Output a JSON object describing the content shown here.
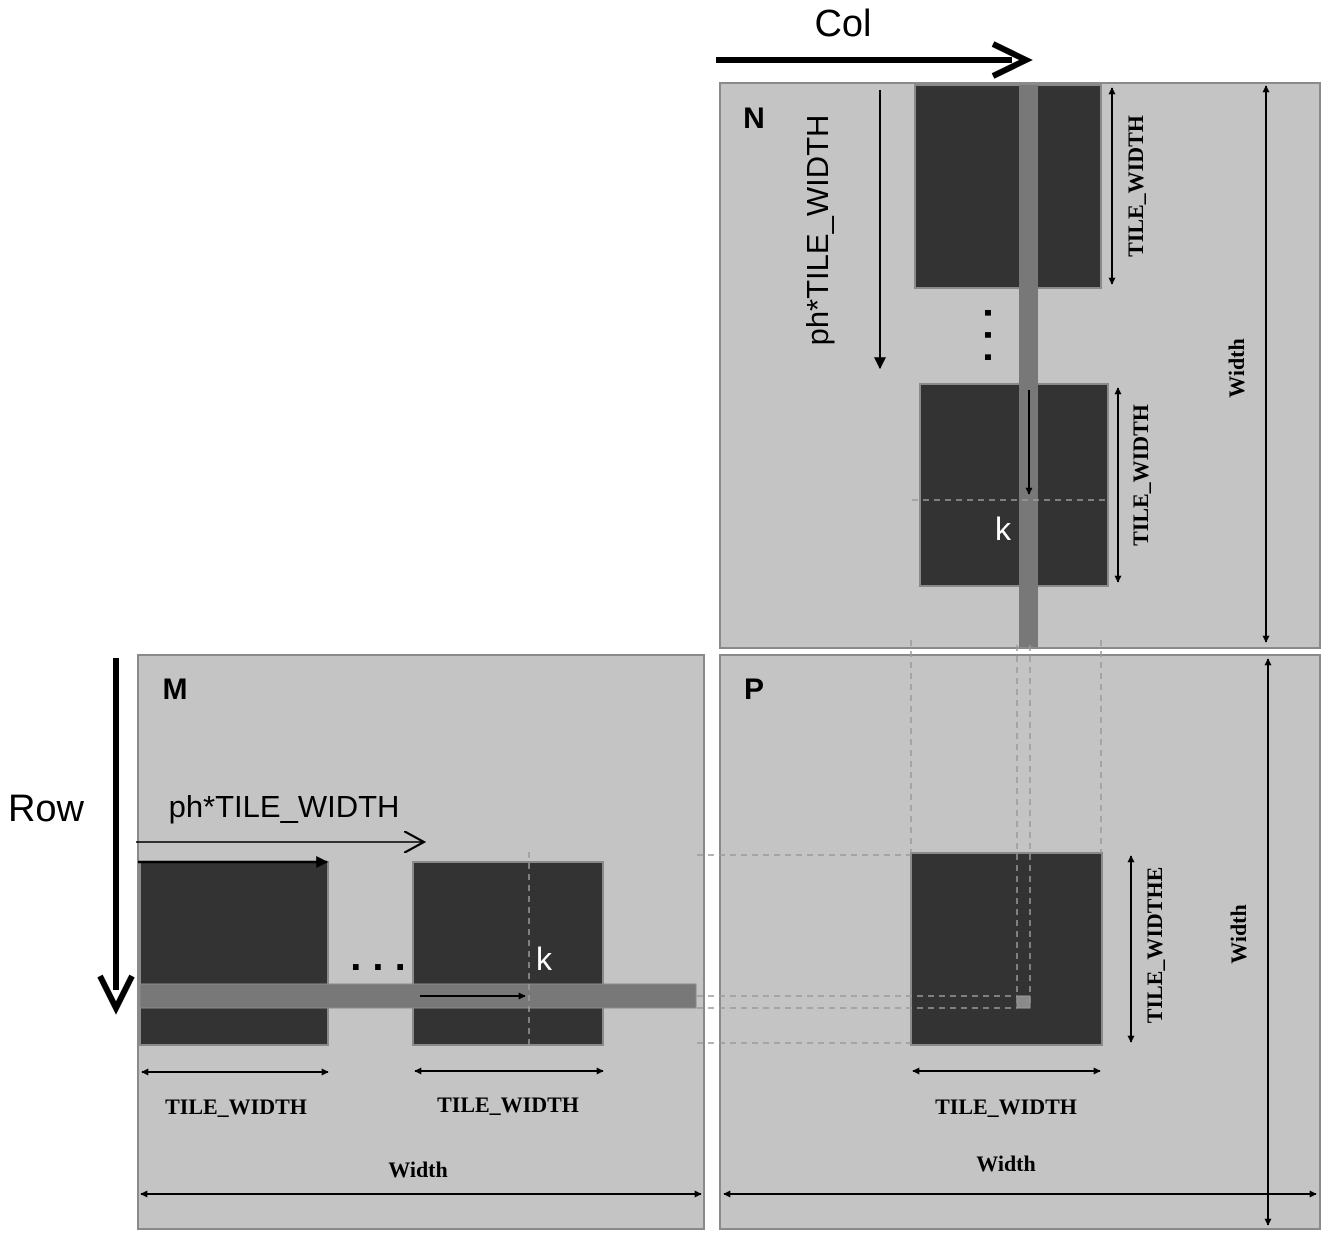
{
  "labels": {
    "col": "Col",
    "row": "Row",
    "matrix_n": "N",
    "matrix_m": "M",
    "matrix_p": "P",
    "ph_tile_width_n": "ph*TILE_WIDTH",
    "ph_tile_width_m": "ph*TILE_WIDTH",
    "k_n": "k",
    "k_m": "k",
    "ellipsis_n": ". . .",
    "ellipsis_m": ". . .",
    "n_tile1_width": "TILE_WIDTH",
    "n_tile2_width": "TILE_WIDTH",
    "n_width": "Width",
    "m_tile1_width": "TILE_WIDTH",
    "m_tile2_width": "TILE_WIDTH",
    "m_width": "Width",
    "p_tile_width_h": "TILE_WIDTH",
    "p_tile_width_v": "TILE_WIDTHE",
    "p_width_h": "Width",
    "p_width_v": "Width"
  },
  "colors": {
    "matrix_fill": "#c4c4c4",
    "matrix_border": "#8a8a8a",
    "tile_fill": "#333333",
    "strip_fill": "#787878",
    "dashed": "#9a9a9a",
    "ink": "#000000"
  }
}
